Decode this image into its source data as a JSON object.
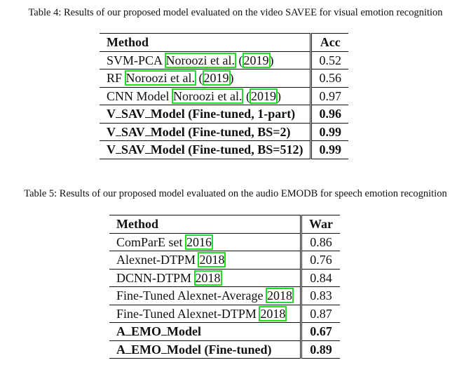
{
  "table4": {
    "caption": "Table 4: Results of our proposed model evaluated on the video SAVEE for visual emotion recognition",
    "header": {
      "method": "Method",
      "metric": "Acc"
    },
    "rows": [
      {
        "method": "SVM-PCA",
        "cite_author": "Noroozi et al.",
        "cite_open": "(",
        "cite_year": "2019",
        "cite_close": ")",
        "value": "0.52",
        "bold": false
      },
      {
        "method": "RF",
        "cite_author": "Noroozi et al.",
        "cite_open": "(",
        "cite_year": "2019",
        "cite_close": ")",
        "value": "0.56",
        "bold": false
      },
      {
        "method": "CNN Model",
        "cite_author": "Noroozi et al.",
        "cite_open": "(",
        "cite_year": "2019",
        "cite_close": ")",
        "value": "0.97",
        "bold": false
      },
      {
        "method_pre": "V",
        "method_mid": "SAV",
        "method_post": "Model (Fine-tuned, 1-part)",
        "value": "0.96",
        "bold": true
      },
      {
        "method_pre": "V",
        "method_mid": "SAV",
        "method_post": "Model (Fine-tuned, BS=2)",
        "value": "0.99",
        "bold": true
      },
      {
        "method_pre": "V",
        "method_mid": "SAV",
        "method_post": "Model (Fine-tuned, BS=512)",
        "value": "0.99",
        "bold": true
      }
    ]
  },
  "table5": {
    "caption": "Table 5: Results of our proposed model evaluated on the audio EMODB for speech emotion recognition",
    "header": {
      "method": "Method",
      "metric": "War"
    },
    "rows": [
      {
        "method": "ComParE set",
        "cite_year": "2016",
        "value": "0.86",
        "bold": false
      },
      {
        "method": "Alexnet-DTPM",
        "cite_year": "2018",
        "value": "0.76",
        "bold": false
      },
      {
        "method": "DCNN-DTPM",
        "cite_year": "2018",
        "value": "0.84",
        "bold": false
      },
      {
        "method": "Fine-Tuned Alexnet-Average",
        "cite_year": "2018",
        "value": "0.83",
        "bold": false
      },
      {
        "method": "Fine-Tuned Alexnet-DTPM",
        "cite_year": "2018",
        "value": "0.87",
        "bold": false
      },
      {
        "method_pre": "A",
        "method_mid": "EMO",
        "method_post": "Model",
        "value": "0.67",
        "bold": true
      },
      {
        "method_pre": "A",
        "method_mid": "EMO",
        "method_post": "Model (Fine-tuned)",
        "value": "0.89",
        "bold": true
      }
    ]
  },
  "colors": {
    "citation_box": "#22dd22",
    "text": "#111111"
  }
}
